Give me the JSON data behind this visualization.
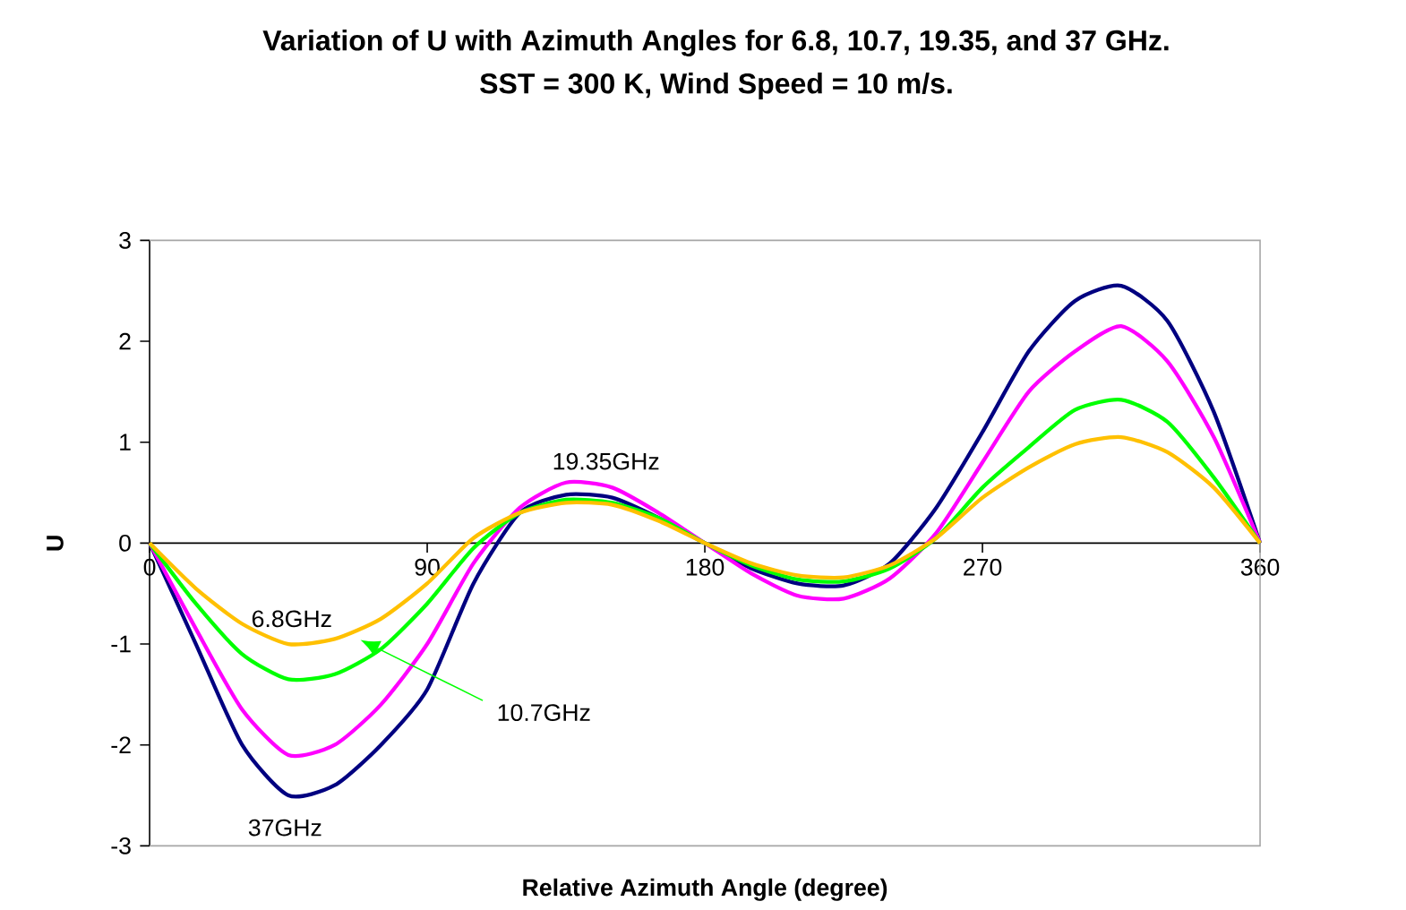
{
  "chart_data": {
    "type": "line",
    "title": "Variation of U with Azimuth Angles for 6.8, 10.7, 19.35, and 37 GHz.",
    "subtitle": "SST = 300 K, Wind Speed = 10 m/s.",
    "xlabel": "Relative Azimuth Angle (degree)",
    "ylabel": "U",
    "x": [
      0,
      15,
      30,
      45,
      60,
      75,
      90,
      105,
      120,
      135,
      150,
      165,
      180,
      195,
      210,
      225,
      240,
      255,
      270,
      285,
      300,
      315,
      330,
      345,
      360
    ],
    "series": [
      {
        "color": "#000080",
        "values": [
          0,
          -1.0,
          -2.0,
          -2.5,
          -2.4,
          -2.0,
          -1.45,
          -0.4,
          0.3,
          0.48,
          0.45,
          0.25,
          0,
          -0.25,
          -0.4,
          -0.42,
          -0.2,
          0.35,
          1.1,
          1.9,
          2.4,
          2.55,
          2.2,
          1.3,
          0
        ]
      },
      {
        "color": "#ff00ff",
        "values": [
          0,
          -0.85,
          -1.65,
          -2.1,
          -2.0,
          -1.6,
          -1.0,
          -0.2,
          0.35,
          0.6,
          0.55,
          0.3,
          0,
          -0.3,
          -0.52,
          -0.55,
          -0.35,
          0.1,
          0.8,
          1.5,
          1.9,
          2.15,
          1.8,
          1.05,
          0
        ]
      },
      {
        "color": "#00ff00",
        "values": [
          0,
          -0.6,
          -1.1,
          -1.35,
          -1.3,
          -1.05,
          -0.6,
          -0.05,
          0.3,
          0.43,
          0.4,
          0.25,
          0,
          -0.22,
          -0.36,
          -0.38,
          -0.25,
          0.05,
          0.55,
          0.95,
          1.32,
          1.42,
          1.2,
          0.65,
          0
        ]
      },
      {
        "color": "#ffc000",
        "values": [
          0,
          -0.45,
          -0.8,
          -1.0,
          -0.95,
          -0.75,
          -0.4,
          0.05,
          0.3,
          0.4,
          0.38,
          0.22,
          0,
          -0.2,
          -0.32,
          -0.34,
          -0.22,
          0.05,
          0.45,
          0.75,
          0.98,
          1.05,
          0.9,
          0.55,
          0
        ]
      }
    ],
    "annotations": [
      "6.8GHz",
      "10.7GHz",
      "19.35GHz",
      "37GHz"
    ],
    "xlim": [
      0,
      360
    ],
    "ylim": [
      -3,
      3
    ],
    "xticks": [
      0,
      90,
      180,
      270,
      360
    ],
    "yticks": [
      -3,
      -2,
      -1,
      0,
      1,
      2,
      3
    ],
    "marker": "none",
    "line_style": "solid"
  }
}
